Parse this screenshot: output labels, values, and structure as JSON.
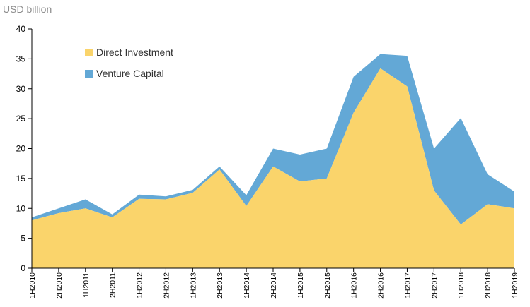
{
  "unit_label": "USD billion",
  "colors": {
    "direct": "#FAD46B",
    "venture": "#63A8D6",
    "axis": "#000000"
  },
  "chart_data": {
    "type": "area",
    "stacked": true,
    "title": "",
    "xlabel": "",
    "ylabel": "USD billion",
    "ylim": [
      0,
      40
    ],
    "yticks": [
      0,
      5,
      10,
      15,
      20,
      25,
      30,
      35,
      40
    ],
    "grid": false,
    "legend_position": "top-left",
    "categories": [
      "1H2010",
      "2H2010",
      "1H2011",
      "2H2011",
      "1H2012",
      "2H2012",
      "1H2013",
      "2H2013",
      "1H2014",
      "2H2014",
      "1H2015",
      "2H2015",
      "1H2016",
      "2H2016",
      "1H2017",
      "2H2017",
      "1H2018",
      "2H2018",
      "1H2019"
    ],
    "series": [
      {
        "name": "Direct Investment",
        "values": [
          8.0,
          9.2,
          10.0,
          8.5,
          11.6,
          11.5,
          12.6,
          16.5,
          10.4,
          17.0,
          14.5,
          15.0,
          26.0,
          33.4,
          30.4,
          13.0,
          7.3,
          10.7,
          10.0
        ]
      },
      {
        "name": "Venture Capital",
        "values": [
          0.5,
          0.8,
          1.5,
          0.5,
          0.7,
          0.5,
          0.5,
          0.5,
          1.8,
          3.0,
          4.5,
          5.0,
          6.0,
          2.4,
          5.1,
          7.0,
          17.8,
          5.0,
          2.8
        ]
      }
    ]
  }
}
